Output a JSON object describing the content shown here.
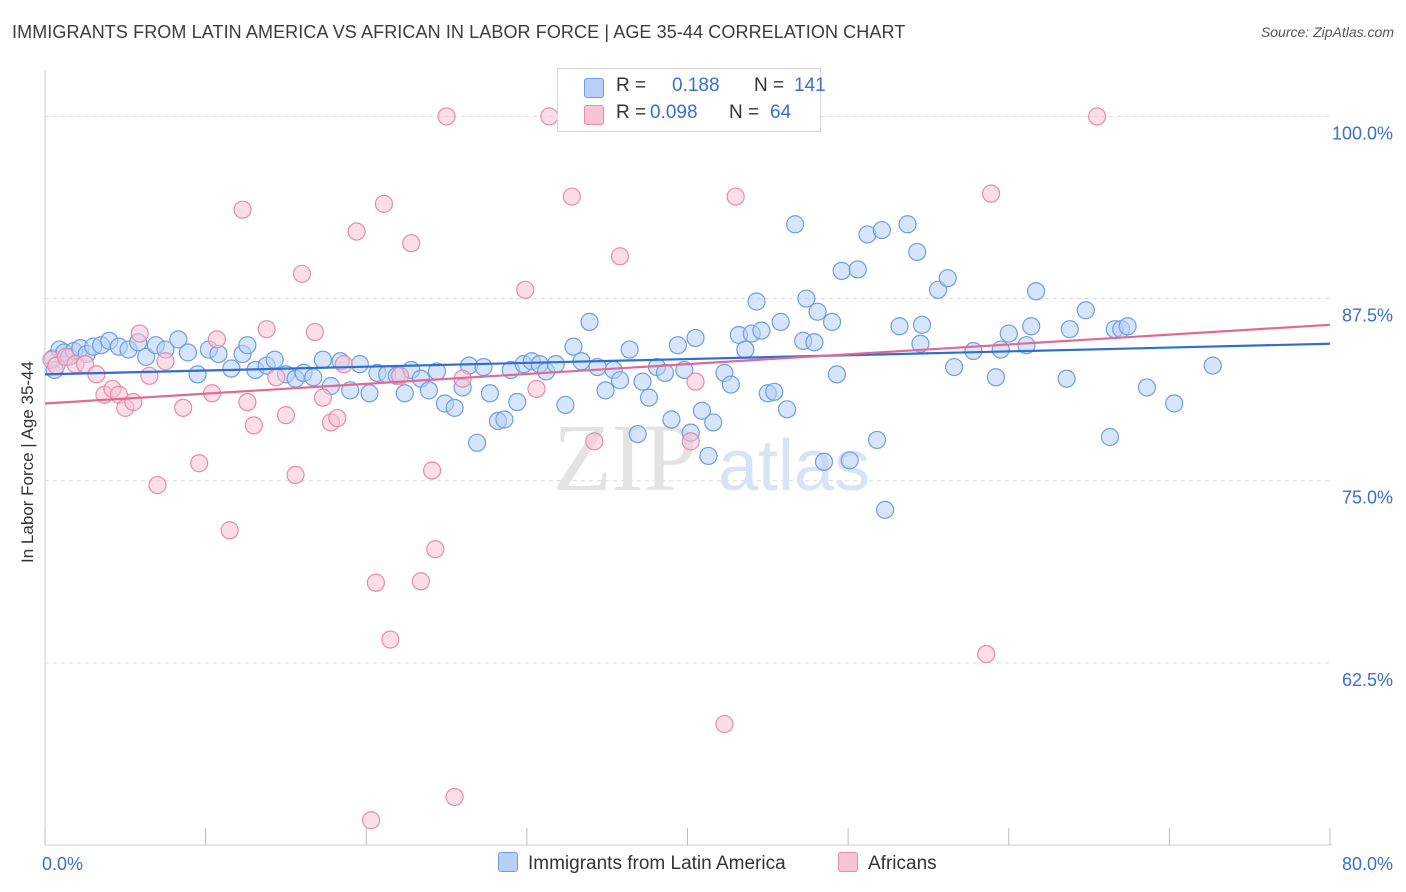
{
  "title": "IMMIGRANTS FROM LATIN AMERICA VS AFRICAN IN LABOR FORCE | AGE 35-44 CORRELATION CHART",
  "source": "Source: ZipAtlas.com",
  "watermark": {
    "zip": "ZIP",
    "atlas": "atlas"
  },
  "legend": {
    "r_label": "R =",
    "n_label": "N =",
    "series1": {
      "r": "0.188",
      "n": "141"
    },
    "series2": {
      "r": "0.098",
      "n": "64"
    }
  },
  "bottom_legend": {
    "series1": "Immigrants from Latin America",
    "series2": "Africans"
  },
  "colors": {
    "blue_fill": "#b7d0f5",
    "blue_stroke": "#6e9ee0",
    "blue_line": "#2f6fd0",
    "pink_fill": "#f7c3d5",
    "pink_stroke": "#e88aac",
    "pink_line": "#e06a96",
    "tick_text": "#3b6fcc",
    "grid": "#d8d8d8"
  },
  "chart_data": {
    "type": "scatter",
    "title": "IMMIGRANTS FROM LATIN AMERICA VS AFRICAN IN LABOR FORCE | AGE 35-44 CORRELATION CHART",
    "xlabel": "",
    "ylabel": "In Labor Force | Age 35-44",
    "xlim": [
      0,
      80
    ],
    "ylim": [
      50,
      102.5
    ],
    "x_tick_labels": [
      "0.0%",
      "80.0%"
    ],
    "y_ticks": [
      62.5,
      75.0,
      87.5,
      100.0
    ],
    "y_tick_labels": [
      "62.5%",
      "75.0%",
      "87.5%",
      "100.0%"
    ],
    "grid": true,
    "legend_position": "top-center",
    "series": [
      {
        "name": "Immigrants from Latin America",
        "R": 0.188,
        "N": 141,
        "trend": [
          [
            0,
            82.3
          ],
          [
            80,
            84.4
          ]
        ],
        "points": [
          [
            0.5,
            83.4
          ],
          [
            0.6,
            82.6
          ],
          [
            0.9,
            84.0
          ],
          [
            1.2,
            83.8
          ],
          [
            1.5,
            83.5
          ],
          [
            1.8,
            83.9
          ],
          [
            2.2,
            84.1
          ],
          [
            2.6,
            83.7
          ],
          [
            3.0,
            84.2
          ],
          [
            3.5,
            84.3
          ],
          [
            4.0,
            84.6
          ],
          [
            4.6,
            84.2
          ],
          [
            5.2,
            84.0
          ],
          [
            5.8,
            84.5
          ],
          [
            6.3,
            83.5
          ],
          [
            6.9,
            84.3
          ],
          [
            7.5,
            84.0
          ],
          [
            8.3,
            84.7
          ],
          [
            8.9,
            83.8
          ],
          [
            9.5,
            82.3
          ],
          [
            10.2,
            84.0
          ],
          [
            10.8,
            83.7
          ],
          [
            11.6,
            82.7
          ],
          [
            12.3,
            83.7
          ],
          [
            12.6,
            84.3
          ],
          [
            13.1,
            82.6
          ],
          [
            13.8,
            82.9
          ],
          [
            14.3,
            83.3
          ],
          [
            15.0,
            82.3
          ],
          [
            15.6,
            82.0
          ],
          [
            16.1,
            82.4
          ],
          [
            16.7,
            82.1
          ],
          [
            17.3,
            83.3
          ],
          [
            17.8,
            81.5
          ],
          [
            18.4,
            83.2
          ],
          [
            19.0,
            81.2
          ],
          [
            19.6,
            83.0
          ],
          [
            20.2,
            81.0
          ],
          [
            20.7,
            82.4
          ],
          [
            21.3,
            82.3
          ],
          [
            21.9,
            82.2
          ],
          [
            22.4,
            81.0
          ],
          [
            22.8,
            82.6
          ],
          [
            23.4,
            82.0
          ],
          [
            23.9,
            81.2
          ],
          [
            24.4,
            82.5
          ],
          [
            24.9,
            80.3
          ],
          [
            25.5,
            80.0
          ],
          [
            26.0,
            81.4
          ],
          [
            26.4,
            82.9
          ],
          [
            26.9,
            77.6
          ],
          [
            27.3,
            82.8
          ],
          [
            27.7,
            81.0
          ],
          [
            28.2,
            79.1
          ],
          [
            28.6,
            79.2
          ],
          [
            29.0,
            82.6
          ],
          [
            29.4,
            80.4
          ],
          [
            29.8,
            83.0
          ],
          [
            30.3,
            83.2
          ],
          [
            30.8,
            83.0
          ],
          [
            31.2,
            82.5
          ],
          [
            31.8,
            83.0
          ],
          [
            32.4,
            80.2
          ],
          [
            32.9,
            84.2
          ],
          [
            33.4,
            83.2
          ],
          [
            33.9,
            85.9
          ],
          [
            34.4,
            82.8
          ],
          [
            34.9,
            81.2
          ],
          [
            35.4,
            82.6
          ],
          [
            35.8,
            81.9
          ],
          [
            36.4,
            84.0
          ],
          [
            36.9,
            78.2
          ],
          [
            37.2,
            81.8
          ],
          [
            37.6,
            80.7
          ],
          [
            38.1,
            82.8
          ],
          [
            38.6,
            82.4
          ],
          [
            39.0,
            79.2
          ],
          [
            39.4,
            84.3
          ],
          [
            39.8,
            82.6
          ],
          [
            40.2,
            78.3
          ],
          [
            40.5,
            84.8
          ],
          [
            40.9,
            79.8
          ],
          [
            41.3,
            76.7
          ],
          [
            41.6,
            79.0
          ],
          [
            42.3,
            82.4
          ],
          [
            42.7,
            81.6
          ],
          [
            43.2,
            85.0
          ],
          [
            43.6,
            84.0
          ],
          [
            44.0,
            85.1
          ],
          [
            44.3,
            87.3
          ],
          [
            44.6,
            85.3
          ],
          [
            45.0,
            81.0
          ],
          [
            45.4,
            81.1
          ],
          [
            45.8,
            85.9
          ],
          [
            46.2,
            79.9
          ],
          [
            46.7,
            92.6
          ],
          [
            47.2,
            84.6
          ],
          [
            47.4,
            87.5
          ],
          [
            47.9,
            84.5
          ],
          [
            48.1,
            86.6
          ],
          [
            48.5,
            76.3
          ],
          [
            49.0,
            85.9
          ],
          [
            49.3,
            82.3
          ],
          [
            49.6,
            89.4
          ],
          [
            50.1,
            76.4
          ],
          [
            50.6,
            89.5
          ],
          [
            51.2,
            91.9
          ],
          [
            51.8,
            77.8
          ],
          [
            52.3,
            73.0
          ],
          [
            52.1,
            92.2
          ],
          [
            53.2,
            85.6
          ],
          [
            53.7,
            92.6
          ],
          [
            54.3,
            90.7
          ],
          [
            54.5,
            84.4
          ],
          [
            54.6,
            85.7
          ],
          [
            55.6,
            88.1
          ],
          [
            56.2,
            88.9
          ],
          [
            56.6,
            82.8
          ],
          [
            57.8,
            83.9
          ],
          [
            59.2,
            82.1
          ],
          [
            59.5,
            84.0
          ],
          [
            60.0,
            85.1
          ],
          [
            61.1,
            84.3
          ],
          [
            61.4,
            85.6
          ],
          [
            61.7,
            88.0
          ],
          [
            63.6,
            82.0
          ],
          [
            63.8,
            85.4
          ],
          [
            64.8,
            86.7
          ],
          [
            66.3,
            78.0
          ],
          [
            66.6,
            85.4
          ],
          [
            67.0,
            85.4
          ],
          [
            67.4,
            85.6
          ],
          [
            68.6,
            81.4
          ],
          [
            70.3,
            80.3
          ],
          [
            72.7,
            82.9
          ]
        ]
      },
      {
        "name": "Africans",
        "R": 0.098,
        "N": 64,
        "trend": [
          [
            0,
            80.3
          ],
          [
            80,
            85.7
          ]
        ],
        "points": [
          [
            0.4,
            83.3
          ],
          [
            0.7,
            82.9
          ],
          [
            1.3,
            83.5
          ],
          [
            1.9,
            83.0
          ],
          [
            2.5,
            83.0
          ],
          [
            3.2,
            82.3
          ],
          [
            3.7,
            80.9
          ],
          [
            4.2,
            81.3
          ],
          [
            4.6,
            80.9
          ],
          [
            5.0,
            80.0
          ],
          [
            5.5,
            80.4
          ],
          [
            5.9,
            85.1
          ],
          [
            6.5,
            82.2
          ],
          [
            7.0,
            74.7
          ],
          [
            7.5,
            83.2
          ],
          [
            8.6,
            80.0
          ],
          [
            9.6,
            76.2
          ],
          [
            10.4,
            81.0
          ],
          [
            10.7,
            84.7
          ],
          [
            11.5,
            71.6
          ],
          [
            12.3,
            93.6
          ],
          [
            12.6,
            80.4
          ],
          [
            13.0,
            78.8
          ],
          [
            13.8,
            85.4
          ],
          [
            14.4,
            82.1
          ],
          [
            15.0,
            79.5
          ],
          [
            15.6,
            75.4
          ],
          [
            16.0,
            89.2
          ],
          [
            16.8,
            85.2
          ],
          [
            17.3,
            80.7
          ],
          [
            17.8,
            79.0
          ],
          [
            18.2,
            79.3
          ],
          [
            18.6,
            83.0
          ],
          [
            19.4,
            92.1
          ],
          [
            20.3,
            51.7
          ],
          [
            20.6,
            68.0
          ],
          [
            21.1,
            94.0
          ],
          [
            21.5,
            64.1
          ],
          [
            22.1,
            82.2
          ],
          [
            22.8,
            91.3
          ],
          [
            23.4,
            68.1
          ],
          [
            24.1,
            75.7
          ],
          [
            24.3,
            70.3
          ],
          [
            25.0,
            100.0
          ],
          [
            25.5,
            53.3
          ],
          [
            26.0,
            82.0
          ],
          [
            29.9,
            88.1
          ],
          [
            30.6,
            81.3
          ],
          [
            31.4,
            100.0
          ],
          [
            32.8,
            94.5
          ],
          [
            34.2,
            77.7
          ],
          [
            35.8,
            90.4
          ],
          [
            40.2,
            77.7
          ],
          [
            40.5,
            81.8
          ],
          [
            42.3,
            58.3
          ],
          [
            43.0,
            94.5
          ],
          [
            58.9,
            94.7
          ],
          [
            58.6,
            63.1
          ],
          [
            65.5,
            100.0
          ]
        ]
      }
    ]
  }
}
